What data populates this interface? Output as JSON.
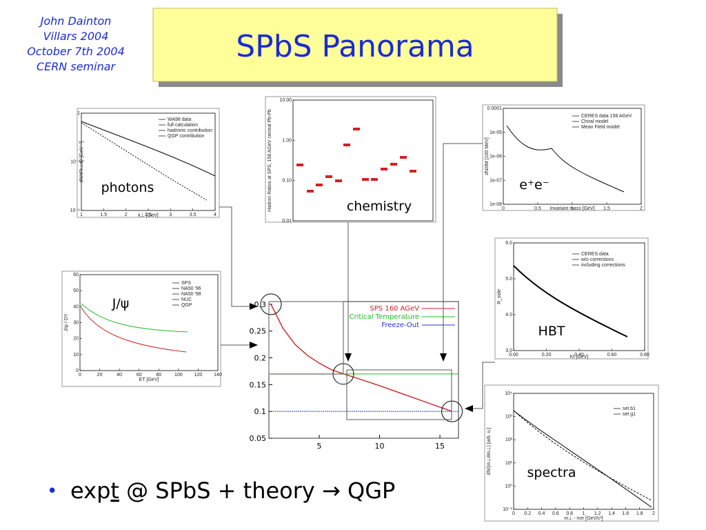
{
  "header": {
    "author_lines": [
      "John Dainton",
      "Villars 2004",
      "October 7th 2004",
      "CERN seminar"
    ],
    "title": "SPbS Panorama"
  },
  "insets": {
    "photons": {
      "label": "photons",
      "xticks": [
        "1",
        "1.5",
        "2",
        "2.5",
        "3",
        "3.5",
        "4"
      ],
      "yticks": [
        "10⁻⁶",
        "10⁻³",
        "1"
      ],
      "xlabel": "k⊥ [GeV]",
      "ylabel": "dN/d²k⊥dy [GeV⁻²]",
      "legend": [
        "WA98 data",
        "full calculation",
        "hadronic contribution",
        "QGP contribution"
      ]
    },
    "chemistry": {
      "label": "chemistry",
      "xticks": [],
      "yticks": [
        "0.01",
        "0.10",
        "1.00",
        "10.00"
      ],
      "xlabel": "",
      "ylabel": "Hadron Ratios at SPS, 158 AGeV central Pb-Pb",
      "legend": []
    },
    "ee": {
      "label": "e⁺e⁻",
      "xticks": [
        "0",
        "0.5",
        "1",
        "1.5",
        "2"
      ],
      "yticks": [
        "1e-08",
        "1e-07",
        "1e-06",
        "1e-05",
        "0.0001"
      ],
      "xlabel": "Invariant mass [GeV]",
      "ylabel": "dN/dM [100 MeV]",
      "legend": [
        "CERES data 158 AGeV",
        "Chiral model",
        "Mean Field model"
      ]
    },
    "jpsi": {
      "label": "J/ψ",
      "xticks": [
        "0",
        "20",
        "40",
        "60",
        "80",
        "100",
        "120",
        "140"
      ],
      "yticks": [
        "0",
        "10",
        "20",
        "30",
        "40",
        "50",
        "60"
      ],
      "xlabel": "ET [GeV]",
      "ylabel": "J/ψ / DY",
      "legend": [
        "SPS",
        "NA50 '96",
        "NA50 '98",
        "NUC",
        "QGP"
      ]
    },
    "hbt": {
      "label": "HBT",
      "xticks": [
        "0.00",
        "0.20",
        "0.40",
        "0.60",
        "0.80"
      ],
      "yticks": [
        "3.0",
        "4.0",
        "5.0",
        "6.0"
      ],
      "xlabel": "Kt [GeV]",
      "ylabel": "R_side",
      "legend": [
        "CERES data",
        "w/o corrections",
        "including corrections"
      ]
    },
    "spectra": {
      "label": "spectra",
      "xticks": [
        "0",
        "0.2",
        "0.4",
        "0.6",
        "0.8",
        "1",
        "1.2",
        "1.4",
        "1.6",
        "1.8",
        "2"
      ],
      "yticks": [
        "10⁻¹",
        "10⁰",
        "10¹",
        "10²",
        "10³",
        "10⁴"
      ],
      "xlabel": "m⊥ - mπ  [GeV/c²]",
      "ylabel": "dN/(m⊥dm⊥)  [arb. u.]",
      "legend": [
        "set b1",
        "set g1"
      ]
    }
  },
  "central": {
    "xlim": [
      0.83,
      16.54
    ],
    "ylim": [
      0.05,
      0.305
    ],
    "xticks": [
      5,
      10,
      15
    ],
    "yticks": [
      0.05,
      0.1,
      0.15,
      0.2,
      0.25,
      0.3
    ],
    "series": [
      {
        "name": "SPS 160 AGeV",
        "color": "#cc2222",
        "x": [
          1,
          2,
          3,
          4,
          5,
          6,
          7,
          8,
          10,
          12,
          14,
          16
        ],
        "values": [
          0.3,
          0.255,
          0.225,
          0.205,
          0.19,
          0.178,
          0.17,
          0.163,
          0.148,
          0.132,
          0.116,
          0.1
        ]
      },
      {
        "name": "Critical Temperature",
        "color": "#22bb22",
        "x": [
          1,
          16.5
        ],
        "values": [
          0.17,
          0.17
        ]
      },
      {
        "name": "Freeze-Out",
        "color": "#2233cc",
        "x": [
          1,
          16.5
        ],
        "values": [
          0.1,
          0.1
        ]
      }
    ]
  },
  "bullet": {
    "prefix": "exp",
    "underlined": "t",
    "rest": " @ SPbS + theory → QGP"
  }
}
